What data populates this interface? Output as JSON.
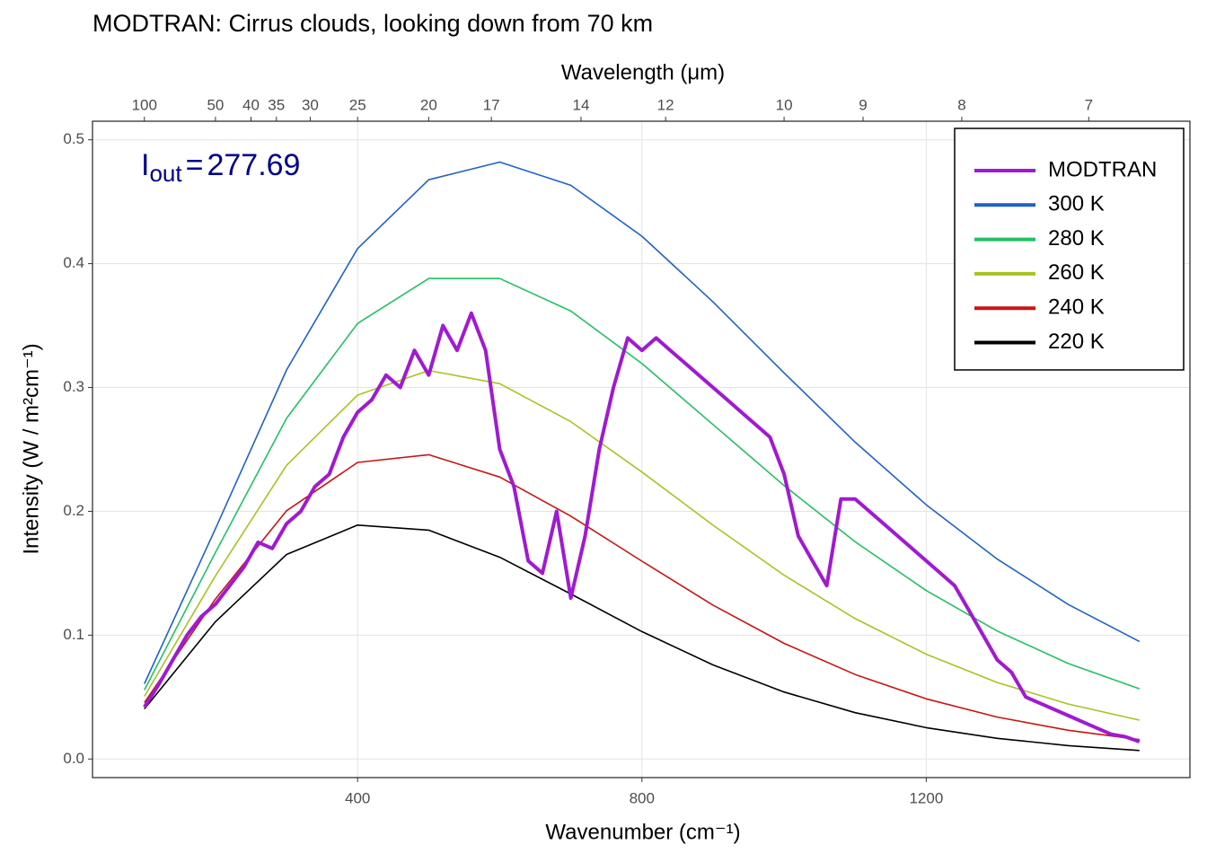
{
  "chart_data": {
    "type": "line",
    "title": "MODTRAN: Cirrus clouds, looking down from 70 km",
    "xlabel": "Wavenumber (cm⁻¹)",
    "ylabel": "Intensity (W / m²cm⁻¹)",
    "x2label": "Wavelength (μm)",
    "annotation": {
      "label": "I",
      "subscript": "out",
      "operator": "=",
      "value": 277.69,
      "color": "#00008b"
    },
    "xlim": [
      27,
      1571
    ],
    "ylim": [
      -0.015,
      0.515
    ],
    "xticks": [
      400,
      800,
      1200
    ],
    "yticks": [
      {
        "value": 0,
        "label": "0.0"
      },
      0.1,
      0.2,
      0.3,
      0.4,
      0.5
    ],
    "x2ticks": [
      100,
      {
        "value": 200,
        "label": "50"
      },
      {
        "value": 250,
        "label": "40"
      },
      {
        "value": 285.7,
        "label": "35"
      },
      {
        "value": 333.3,
        "label": "30"
      },
      {
        "value": 400,
        "label": "25"
      },
      {
        "value": 500,
        "label": "20"
      },
      {
        "value": 588.2,
        "label": "17"
      },
      {
        "value": 714.3,
        "label": "14"
      },
      {
        "value": 833.3,
        "label": "12"
      },
      {
        "value": 1000,
        "label": "10"
      },
      {
        "value": 1111.1,
        "label": "9"
      },
      {
        "value": 1250,
        "label": "8"
      },
      {
        "value": 1428.6,
        "label": "7"
      }
    ],
    "grid": true,
    "legend": "top-right",
    "series": [
      {
        "name": "MODTRAN",
        "color": "#a01ad0",
        "width": 4,
        "x": [
          100,
          120,
          140,
          160,
          180,
          200,
          220,
          240,
          260,
          280,
          300,
          320,
          340,
          360,
          380,
          400,
          420,
          440,
          460,
          480,
          500,
          520,
          540,
          560,
          580,
          600,
          620,
          640,
          660,
          680,
          700,
          720,
          740,
          760,
          780,
          800,
          820,
          840,
          860,
          880,
          900,
          920,
          940,
          960,
          980,
          1000,
          1020,
          1040,
          1060,
          1080,
          1100,
          1120,
          1140,
          1160,
          1180,
          1200,
          1220,
          1240,
          1260,
          1280,
          1300,
          1320,
          1340,
          1360,
          1380,
          1400,
          1420,
          1440,
          1460,
          1480,
          1500
        ],
        "values": [
          0.042,
          0.06,
          0.08,
          0.1,
          0.115,
          0.125,
          0.14,
          0.155,
          0.175,
          0.17,
          0.19,
          0.2,
          0.22,
          0.23,
          0.26,
          0.28,
          0.29,
          0.31,
          0.3,
          0.33,
          0.31,
          0.35,
          0.33,
          0.36,
          0.33,
          0.25,
          0.22,
          0.16,
          0.15,
          0.2,
          0.13,
          0.18,
          0.25,
          0.3,
          0.34,
          0.33,
          0.34,
          0.33,
          0.32,
          0.31,
          0.3,
          0.29,
          0.28,
          0.27,
          0.26,
          0.23,
          0.18,
          0.16,
          0.14,
          0.21,
          0.21,
          0.2,
          0.19,
          0.18,
          0.17,
          0.16,
          0.15,
          0.14,
          0.12,
          0.1,
          0.08,
          0.07,
          0.05,
          0.045,
          0.04,
          0.035,
          0.03,
          0.025,
          0.02,
          0.018,
          0.014
        ]
      },
      {
        "name": "300 K",
        "color": "#1f62c8",
        "width": 1.6,
        "x": [
          100,
          200,
          300,
          400,
          500,
          600,
          700,
          800,
          900,
          1000,
          1100,
          1200,
          1300,
          1400,
          1500
        ],
        "values": [
          0.0608,
          0.186,
          0.3142,
          0.4122,
          0.4677,
          0.482,
          0.4632,
          0.4221,
          0.3691,
          0.3118,
          0.2559,
          0.2053,
          0.1614,
          0.1247,
          0.0949
        ]
      },
      {
        "name": "280 K",
        "color": "#22c064",
        "width": 1.6,
        "x": [
          100,
          200,
          300,
          400,
          500,
          600,
          700,
          800,
          900,
          1000,
          1100,
          1200,
          1300,
          1400,
          1500
        ],
        "values": [
          0.0557,
          0.1668,
          0.2751,
          0.3517,
          0.388,
          0.388,
          0.3617,
          0.3193,
          0.2701,
          0.2208,
          0.1754,
          0.136,
          0.1033,
          0.0771,
          0.0567
        ]
      },
      {
        "name": "260 K",
        "color": "#a8c322",
        "width": 1.6,
        "x": [
          100,
          200,
          300,
          400,
          500,
          600,
          700,
          800,
          900,
          1000,
          1100,
          1200,
          1300,
          1400,
          1500
        ],
        "values": [
          0.0506,
          0.1479,
          0.2372,
          0.2939,
          0.3137,
          0.3031,
          0.2724,
          0.2317,
          0.1888,
          0.1484,
          0.1134,
          0.0846,
          0.0618,
          0.0444,
          0.0314
        ]
      },
      {
        "name": "240 K",
        "color": "#c81414",
        "width": 1.6,
        "x": [
          100,
          200,
          300,
          400,
          500,
          600,
          700,
          800,
          900,
          1000,
          1100,
          1200,
          1300,
          1400,
          1500
        ],
        "values": [
          0.0456,
          0.1292,
          0.2005,
          0.2395,
          0.2457,
          0.2277,
          0.1961,
          0.1597,
          0.1243,
          0.0934,
          0.0682,
          0.0486,
          0.0339,
          0.0232,
          0.0157
        ]
      },
      {
        "name": "220 K",
        "color": "#000000",
        "width": 1.6,
        "x": [
          100,
          200,
          300,
          400,
          500,
          600,
          700,
          800,
          900,
          1000,
          1100,
          1200,
          1300,
          1400,
          1500
        ],
        "values": [
          0.0405,
          0.1109,
          0.1652,
          0.1889,
          0.1848,
          0.1629,
          0.1333,
          0.1029,
          0.076,
          0.0541,
          0.0374,
          0.0253,
          0.0167,
          0.0108,
          0.0069
        ]
      }
    ]
  }
}
